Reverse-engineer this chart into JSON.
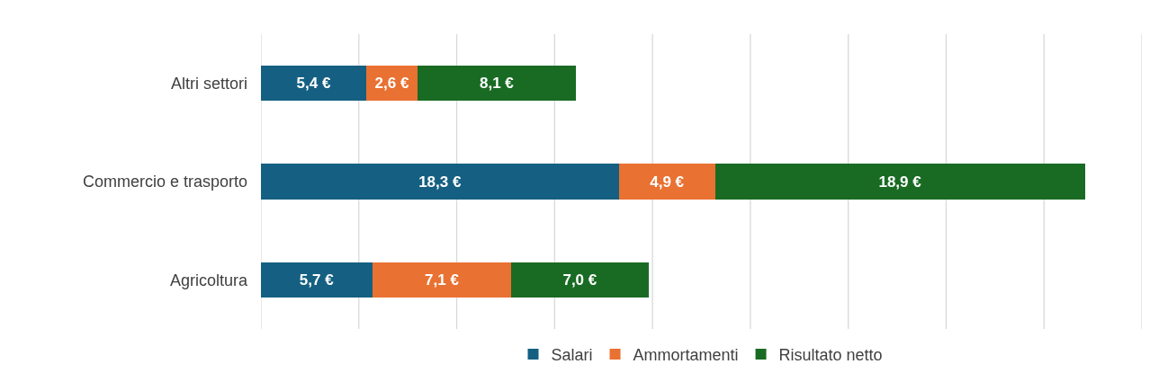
{
  "chart_data": {
    "type": "bar",
    "orientation": "horizontal",
    "stacked": true,
    "categories": [
      "Altri settori",
      "Commercio e trasporto",
      "Agricoltura"
    ],
    "series": [
      {
        "name": "Salari",
        "color": "#156082",
        "values": [
          5.4,
          18.3,
          5.7
        ],
        "value_labels": [
          "5,4 €",
          "18,3 €",
          "5,7 €"
        ]
      },
      {
        "name": "Ammortamenti",
        "color": "#e97132",
        "values": [
          2.6,
          4.9,
          7.1
        ],
        "value_labels": [
          "2,6 €",
          "4,9 €",
          "7,1 €"
        ]
      },
      {
        "name": "Risultato netto",
        "color": "#196b24",
        "values": [
          8.1,
          18.9,
          7.0
        ],
        "value_labels": [
          "8,1 €",
          "18,9 €",
          "7,0 €"
        ]
      }
    ],
    "xlim": [
      0,
      45
    ],
    "xticks": [
      {
        "value": 0,
        "label": null
      },
      {
        "value": 5,
        "label": null
      },
      {
        "value": 10,
        "label": null
      },
      {
        "value": 15,
        "label": null
      },
      {
        "value": 20,
        "label": null
      },
      {
        "value": 25,
        "label": null
      },
      {
        "value": 30,
        "label": null
      },
      {
        "value": 35,
        "label": null
      },
      {
        "value": 40,
        "label": null
      },
      {
        "value": 45,
        "label": null
      }
    ],
    "tick_labels": "y",
    "grid": "x",
    "legend": "bottom"
  }
}
